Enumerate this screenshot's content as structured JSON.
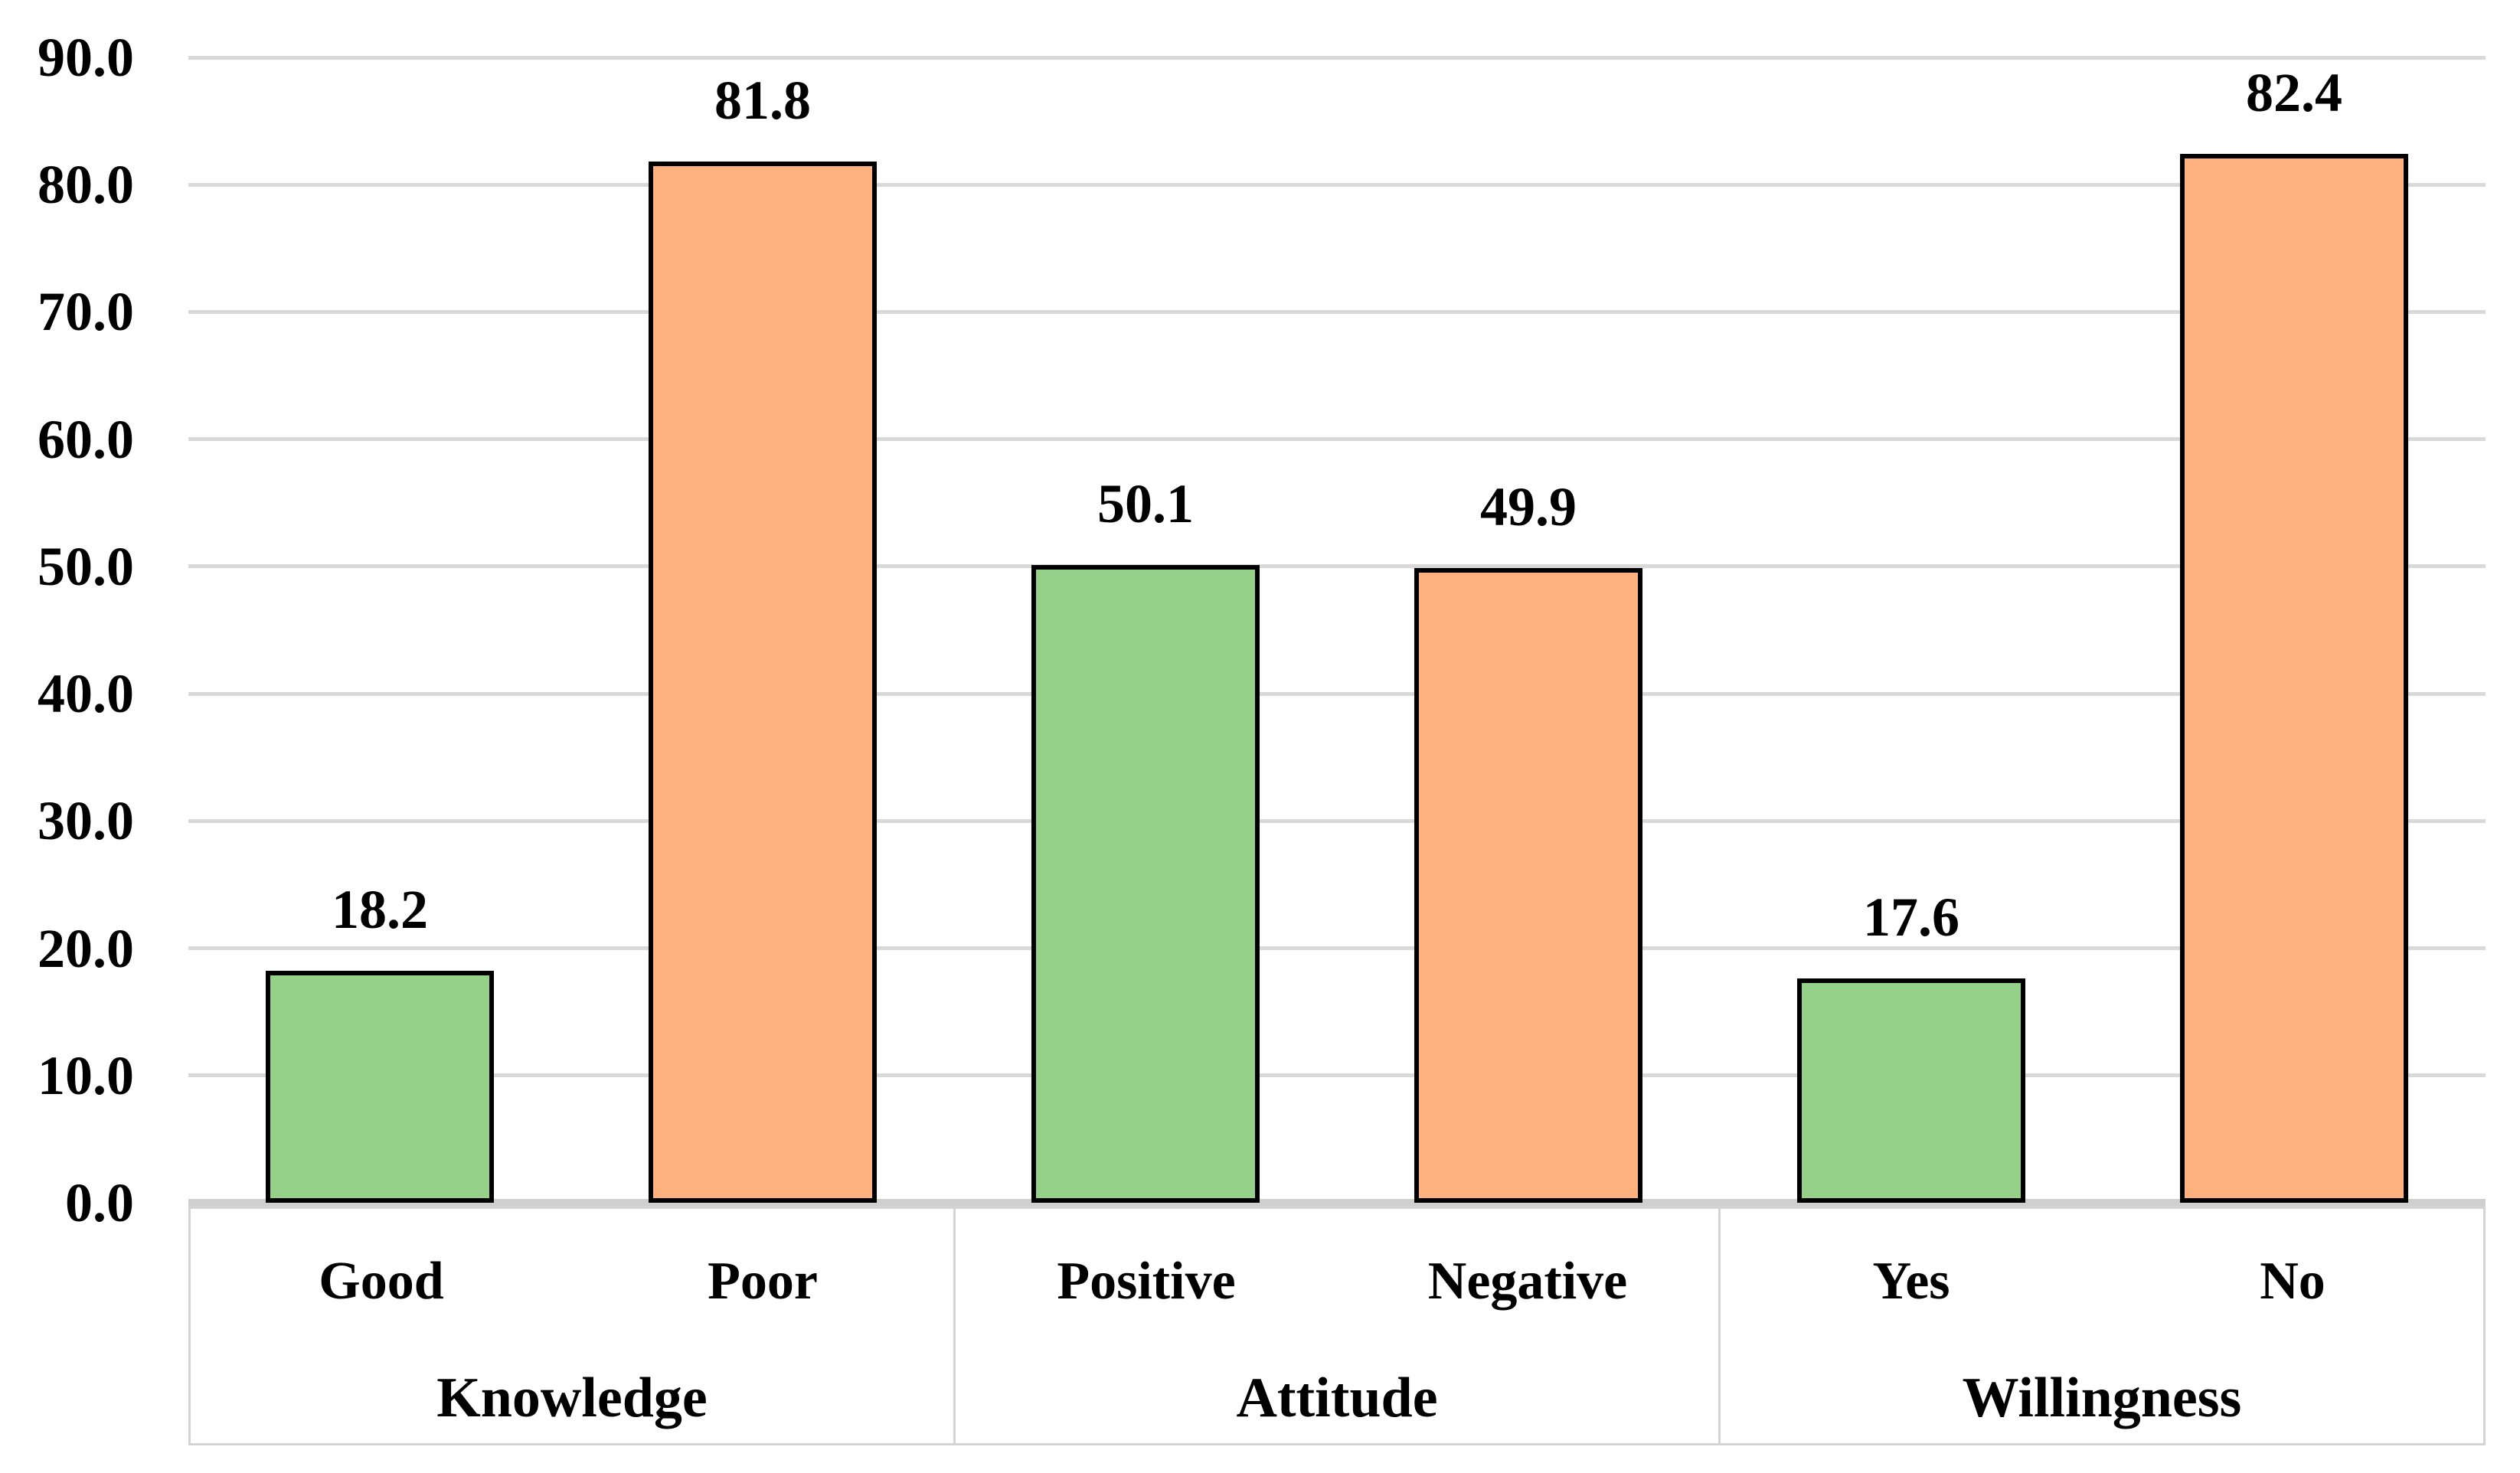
{
  "chart_data": {
    "type": "bar",
    "title": "",
    "xlabel": "",
    "ylabel": "",
    "y_axis": {
      "min": 0,
      "max": 90,
      "step": 10,
      "tick_labels": [
        "0.0",
        "10.0",
        "20.0",
        "30.0",
        "40.0",
        "50.0",
        "60.0",
        "70.0",
        "80.0",
        "90.0"
      ]
    },
    "grid": true,
    "legend_position": "none",
    "categories": [
      "Good",
      "Poor",
      "Positive",
      "Negative",
      "Yes",
      "No"
    ],
    "values": [
      18.2,
      81.8,
      50.1,
      49.9,
      17.6,
      82.4
    ],
    "groups": [
      {
        "label": "Knowledge",
        "bars": [
          {
            "category": "Good",
            "value": 18.2,
            "data_label": "18.2",
            "color": "#96D18A"
          },
          {
            "category": "Poor",
            "value": 81.8,
            "data_label": "81.8",
            "color": "#FCB17E"
          }
        ]
      },
      {
        "label": "Attitude",
        "bars": [
          {
            "category": "Positive",
            "value": 50.1,
            "data_label": "50.1",
            "color": "#96D18A"
          },
          {
            "category": "Negative",
            "value": 49.9,
            "data_label": "49.9",
            "color": "#FCB17E"
          }
        ]
      },
      {
        "label": "Willingness",
        "bars": [
          {
            "category": "Yes",
            "value": 17.6,
            "data_label": "17.6",
            "color": "#96D18A"
          },
          {
            "category": "No",
            "value": 82.4,
            "data_label": "82.4",
            "color": "#FCB17E"
          }
        ]
      }
    ],
    "colors": {
      "green_bar": "#96D18A",
      "orange_bar": "#FCB17E",
      "bar_border": "#000000",
      "gridline": "#D9D9D9",
      "axis_line": "#CFCFCF",
      "label_box_border": "#D4D4D4",
      "text": "#000000",
      "background": "#FFFFFF"
    }
  }
}
